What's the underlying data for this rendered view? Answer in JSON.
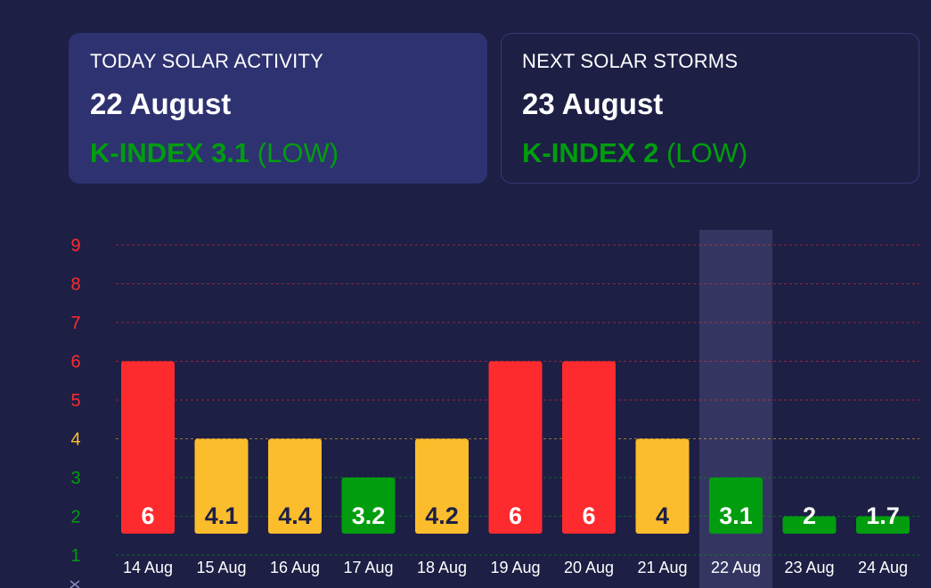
{
  "cards": {
    "today": {
      "label": "TODAY SOLAR ACTIVITY",
      "date": "22 August",
      "kindex_label": "K-INDEX 3.1",
      "level": "(LOW)"
    },
    "next": {
      "label": "NEXT SOLAR STORMS",
      "date": "23 August",
      "kindex_label": "K-INDEX 2",
      "level": "(LOW)"
    }
  },
  "colors": {
    "background": "#1d1f45",
    "card_active": "#2e3270",
    "low": "#019d0e",
    "moderate": "#fcbd2c",
    "high": "#fe2b2e",
    "text": "#ffffff",
    "dark_text": "#1d1f45",
    "highlight_column": "#343661"
  },
  "chart_data": {
    "type": "bar",
    "categories": [
      "14 Aug",
      "15 Aug",
      "16 Aug",
      "17 Aug",
      "18 Aug",
      "19 Aug",
      "20 Aug",
      "21 Aug",
      "22 Aug",
      "23 Aug",
      "24 Aug"
    ],
    "values": [
      6,
      4.1,
      4.4,
      3.2,
      4.2,
      6,
      6,
      4,
      3.1,
      2,
      1.7
    ],
    "data_labels": [
      "6",
      "4.1",
      "4.4",
      "3.2",
      "4.2",
      "6",
      "6",
      "4",
      "3.1",
      "2",
      "1.7"
    ],
    "bar_heights": [
      6,
      4,
      4,
      3,
      4,
      6,
      6,
      4,
      3,
      2,
      2
    ],
    "bar_colors": [
      "#fe2b2e",
      "#fcbd2c",
      "#fcbd2c",
      "#019d0e",
      "#fcbd2c",
      "#fe2b2e",
      "#fe2b2e",
      "#fcbd2c",
      "#019d0e",
      "#019d0e",
      "#019d0e"
    ],
    "label_colors": [
      "#ffffff",
      "#1d1f45",
      "#1d1f45",
      "#ffffff",
      "#1d1f45",
      "#ffffff",
      "#ffffff",
      "#1d1f45",
      "#ffffff",
      "#ffffff",
      "#ffffff"
    ],
    "highlighted_category": "22 Aug",
    "y_ticks": [
      {
        "value": 1,
        "label": "1",
        "color": "#019d0e"
      },
      {
        "value": 2,
        "label": "2",
        "color": "#019d0e"
      },
      {
        "value": 3,
        "label": "3",
        "color": "#019d0e"
      },
      {
        "value": 4,
        "label": "4",
        "color": "#fcbd2c"
      },
      {
        "value": 5,
        "label": "5",
        "color": "#fe2b2e"
      },
      {
        "value": 6,
        "label": "6",
        "color": "#fe2b2e"
      },
      {
        "value": 7,
        "label": "7",
        "color": "#fe2b2e"
      },
      {
        "value": 8,
        "label": "8",
        "color": "#fe2b2e"
      },
      {
        "value": 9,
        "label": "9",
        "color": "#fe2b2e"
      }
    ],
    "ylim": [
      1,
      9
    ],
    "grid": true,
    "title": "",
    "xlabel": "",
    "ylabel": ""
  }
}
